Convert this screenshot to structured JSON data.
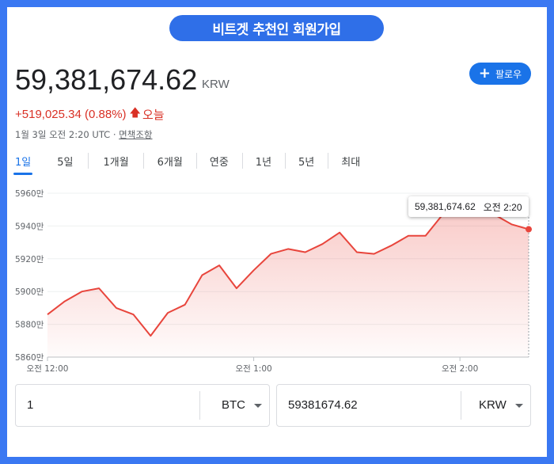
{
  "banner": {
    "text": "비트겟 추천인 회원가입"
  },
  "price": {
    "value": "59,381,674.62",
    "currency": "KRW"
  },
  "follow": {
    "label": "팔로우"
  },
  "change": {
    "text": "+519,025.34 (0.88%)",
    "period": "오늘",
    "color": "#d93025"
  },
  "timestamp": {
    "text": "1월 3일 오전 2:20 UTC · ",
    "disclaimer": "면책조항"
  },
  "tabs": [
    {
      "label": "1일",
      "active": true
    },
    {
      "label": "5일"
    },
    {
      "label": "1개월"
    },
    {
      "label": "6개월"
    },
    {
      "label": "연중"
    },
    {
      "label": "1년"
    },
    {
      "label": "5년"
    },
    {
      "label": "최대"
    }
  ],
  "chart_data": {
    "type": "area",
    "y_tick_labels": [
      "5960만",
      "5940만",
      "5920만",
      "5900만",
      "5880만",
      "5860만"
    ],
    "y_ticks": [
      5960,
      5940,
      5920,
      5900,
      5880,
      5860
    ],
    "ylim": [
      5860,
      5960
    ],
    "x_tick_labels": [
      "오전 12:00",
      "오전 1:00",
      "오전 2:00"
    ],
    "x_ticks": [
      0,
      60,
      120
    ],
    "xlim": [
      0,
      140
    ],
    "x_minutes": [
      0,
      5,
      10,
      15,
      20,
      25,
      30,
      35,
      40,
      45,
      50,
      55,
      60,
      65,
      70,
      75,
      80,
      85,
      90,
      95,
      100,
      105,
      110,
      115,
      120,
      125,
      130,
      135,
      140
    ],
    "y_values": [
      5886,
      5894,
      5900,
      5902,
      5890,
      5886,
      5873,
      5887,
      5892,
      5910,
      5916,
      5902,
      5913,
      5923,
      5926,
      5924,
      5929,
      5936,
      5924,
      5923,
      5928,
      5934,
      5934,
      5947,
      5951,
      5951,
      5947,
      5941,
      5938
    ],
    "tooltip_value": "59,381,674.62",
    "tooltip_time": "오전 2:20",
    "line_color": "#e8453c"
  },
  "converter": {
    "left": {
      "value": "1",
      "unit": "BTC"
    },
    "right": {
      "value": "59381674.62",
      "unit": "KRW"
    }
  }
}
